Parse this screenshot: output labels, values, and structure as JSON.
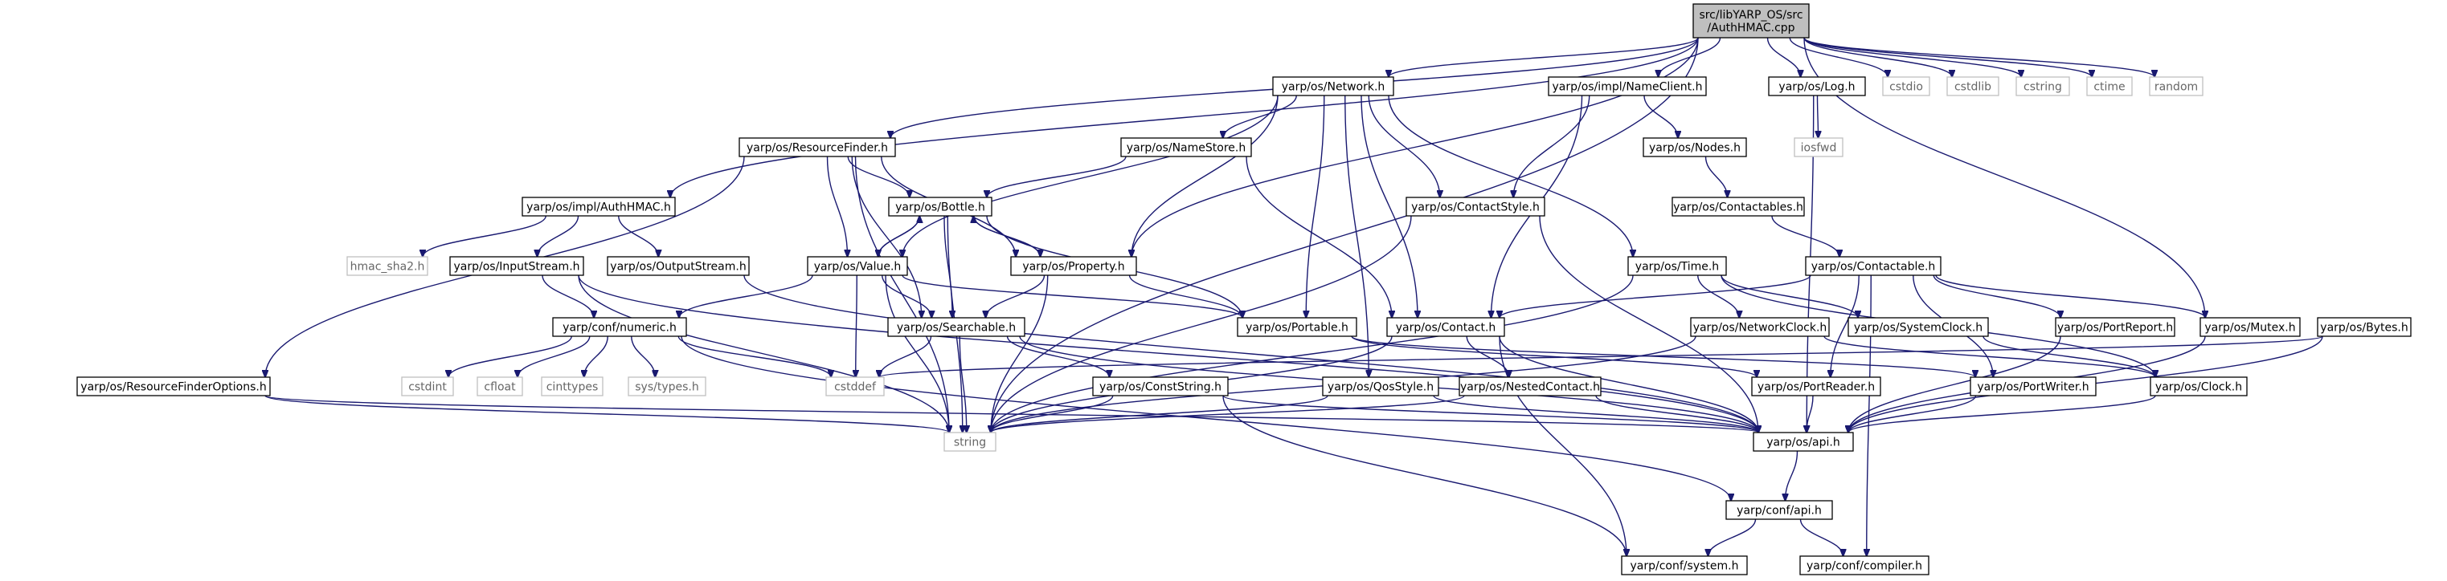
{
  "graph": {
    "root": "src/libYARP_OS/src/AuthHMAC.cpp",
    "nodes": [
      {
        "id": "root",
        "label": "src/libYARP_OS/src\n/AuthHMAC.cpp",
        "kind": "root"
      },
      {
        "id": "string",
        "label": "string",
        "kind": "system"
      },
      {
        "id": "resfinder",
        "label": "yarp/os/ResourceFinder.h",
        "kind": "project"
      },
      {
        "id": "network",
        "label": "yarp/os/Network.h",
        "kind": "project"
      },
      {
        "id": "nameclient",
        "label": "yarp/os/impl/NameClient.h",
        "kind": "project"
      },
      {
        "id": "log",
        "label": "yarp/os/Log.h",
        "kind": "project"
      },
      {
        "id": "cstdio",
        "label": "cstdio",
        "kind": "system"
      },
      {
        "id": "cstdlib",
        "label": "cstdlib",
        "kind": "system"
      },
      {
        "id": "cstring",
        "label": "cstring",
        "kind": "system"
      },
      {
        "id": "ctime",
        "label": "ctime",
        "kind": "system"
      },
      {
        "id": "random",
        "label": "random",
        "kind": "system"
      },
      {
        "id": "iosfwd",
        "label": "iosfwd",
        "kind": "system"
      },
      {
        "id": "nodes",
        "label": "yarp/os/Nodes.h",
        "kind": "project"
      },
      {
        "id": "namestore",
        "label": "yarp/os/NameStore.h",
        "kind": "project"
      },
      {
        "id": "authimpl",
        "label": "yarp/os/impl/AuthHMAC.h",
        "kind": "project"
      },
      {
        "id": "bottle",
        "label": "yarp/os/Bottle.h",
        "kind": "project"
      },
      {
        "id": "contactstyle",
        "label": "yarp/os/ContactStyle.h",
        "kind": "project"
      },
      {
        "id": "contactables",
        "label": "yarp/os/Contactables.h",
        "kind": "project"
      },
      {
        "id": "hmac",
        "label": "hmac_sha2.h",
        "kind": "system"
      },
      {
        "id": "inputstream",
        "label": "yarp/os/InputStream.h",
        "kind": "project"
      },
      {
        "id": "outputstream",
        "label": "yarp/os/OutputStream.h",
        "kind": "project"
      },
      {
        "id": "value",
        "label": "yarp/os/Value.h",
        "kind": "project"
      },
      {
        "id": "property",
        "label": "yarp/os/Property.h",
        "kind": "project"
      },
      {
        "id": "time",
        "label": "yarp/os/Time.h",
        "kind": "project"
      },
      {
        "id": "contactable",
        "label": "yarp/os/Contactable.h",
        "kind": "project"
      },
      {
        "id": "numeric",
        "label": "yarp/conf/numeric.h",
        "kind": "project"
      },
      {
        "id": "searchable",
        "label": "yarp/os/Searchable.h",
        "kind": "project"
      },
      {
        "id": "portable",
        "label": "yarp/os/Portable.h",
        "kind": "project"
      },
      {
        "id": "contact",
        "label": "yarp/os/Contact.h",
        "kind": "project"
      },
      {
        "id": "networkclock",
        "label": "yarp/os/NetworkClock.h",
        "kind": "project"
      },
      {
        "id": "systemclock",
        "label": "yarp/os/SystemClock.h",
        "kind": "project"
      },
      {
        "id": "portreport",
        "label": "yarp/os/PortReport.h",
        "kind": "project"
      },
      {
        "id": "mutex",
        "label": "yarp/os/Mutex.h",
        "kind": "project"
      },
      {
        "id": "bytes",
        "label": "yarp/os/Bytes.h",
        "kind": "project"
      },
      {
        "id": "cstdint",
        "label": "cstdint",
        "kind": "system"
      },
      {
        "id": "cfloat",
        "label": "cfloat",
        "kind": "system"
      },
      {
        "id": "cinttypes",
        "label": "cinttypes",
        "kind": "system"
      },
      {
        "id": "systypes",
        "label": "sys/types.h",
        "kind": "system"
      },
      {
        "id": "cstddef",
        "label": "cstddef",
        "kind": "system"
      },
      {
        "id": "resfinderopts",
        "label": "yarp/os/ResourceFinderOptions.h",
        "kind": "project"
      },
      {
        "id": "conststring",
        "label": "yarp/os/ConstString.h",
        "kind": "project"
      },
      {
        "id": "qosstyle",
        "label": "yarp/os/QosStyle.h",
        "kind": "project"
      },
      {
        "id": "nestedcontact",
        "label": "yarp/os/NestedContact.h",
        "kind": "project"
      },
      {
        "id": "portreader",
        "label": "yarp/os/PortReader.h",
        "kind": "project"
      },
      {
        "id": "portwriter",
        "label": "yarp/os/PortWriter.h",
        "kind": "project"
      },
      {
        "id": "clock",
        "label": "yarp/os/Clock.h",
        "kind": "project"
      },
      {
        "id": "api",
        "label": "yarp/os/api.h",
        "kind": "project"
      },
      {
        "id": "confapi",
        "label": "yarp/conf/api.h",
        "kind": "project"
      },
      {
        "id": "confsystem",
        "label": "yarp/conf/system.h",
        "kind": "project"
      },
      {
        "id": "confcompiler",
        "label": "yarp/conf/compiler.h",
        "kind": "project"
      }
    ],
    "edges": [
      [
        "root",
        "string"
      ],
      [
        "root",
        "resfinder"
      ],
      [
        "root",
        "network"
      ],
      [
        "root",
        "nameclient"
      ],
      [
        "root",
        "log"
      ],
      [
        "root",
        "cstdio"
      ],
      [
        "root",
        "cstdlib"
      ],
      [
        "root",
        "cstring"
      ],
      [
        "root",
        "ctime"
      ],
      [
        "root",
        "random"
      ],
      [
        "root",
        "authimpl"
      ],
      [
        "root",
        "property"
      ],
      [
        "root",
        "mutex"
      ],
      [
        "resfinder",
        "bottle"
      ],
      [
        "resfinder",
        "property"
      ],
      [
        "resfinder",
        "value"
      ],
      [
        "resfinder",
        "searchable"
      ],
      [
        "resfinder",
        "resfinderopts"
      ],
      [
        "resfinder",
        "string"
      ],
      [
        "network",
        "namestore"
      ],
      [
        "network",
        "contactstyle"
      ],
      [
        "network",
        "contact"
      ],
      [
        "network",
        "portable"
      ],
      [
        "network",
        "time"
      ],
      [
        "network",
        "value"
      ],
      [
        "network",
        "property"
      ],
      [
        "network",
        "qosstyle"
      ],
      [
        "nameclient",
        "nodes"
      ],
      [
        "nameclient",
        "contactstyle"
      ],
      [
        "nameclient",
        "contact"
      ],
      [
        "log",
        "iosfwd"
      ],
      [
        "log",
        "api"
      ],
      [
        "nodes",
        "contactables"
      ],
      [
        "contactables",
        "contactable"
      ],
      [
        "namestore",
        "bottle"
      ],
      [
        "namestore",
        "contact"
      ],
      [
        "authimpl",
        "hmac"
      ],
      [
        "authimpl",
        "inputstream"
      ],
      [
        "authimpl",
        "outputstream"
      ],
      [
        "bottle",
        "value"
      ],
      [
        "bottle",
        "property"
      ],
      [
        "bottle",
        "searchable"
      ],
      [
        "bottle",
        "portable"
      ],
      [
        "bottle",
        "string"
      ],
      [
        "value",
        "bottle"
      ],
      [
        "property",
        "bottle"
      ],
      [
        "contactstyle",
        "string"
      ],
      [
        "contactstyle",
        "api"
      ],
      [
        "inputstream",
        "numeric"
      ],
      [
        "inputstream",
        "string"
      ],
      [
        "inputstream",
        "api"
      ],
      [
        "outputstream",
        "api"
      ],
      [
        "value",
        "numeric"
      ],
      [
        "value",
        "searchable"
      ],
      [
        "value",
        "portable"
      ],
      [
        "value",
        "string"
      ],
      [
        "value",
        "cstddef"
      ],
      [
        "property",
        "searchable"
      ],
      [
        "property",
        "portable"
      ],
      [
        "property",
        "string"
      ],
      [
        "time",
        "networkclock"
      ],
      [
        "time",
        "systemclock"
      ],
      [
        "time",
        "string"
      ],
      [
        "time",
        "clock"
      ],
      [
        "contactable",
        "contact"
      ],
      [
        "contactable",
        "portreport"
      ],
      [
        "contactable",
        "mutex"
      ],
      [
        "contactable",
        "portreader"
      ],
      [
        "contactable",
        "portwriter"
      ],
      [
        "contactable",
        "confcompiler"
      ],
      [
        "numeric",
        "cstdint"
      ],
      [
        "numeric",
        "cfloat"
      ],
      [
        "numeric",
        "cinttypes"
      ],
      [
        "numeric",
        "systypes"
      ],
      [
        "numeric",
        "cstddef"
      ],
      [
        "numeric",
        "confapi"
      ],
      [
        "searchable",
        "conststring"
      ],
      [
        "searchable",
        "cstddef"
      ],
      [
        "searchable",
        "string"
      ],
      [
        "searchable",
        "api"
      ],
      [
        "portable",
        "portreader"
      ],
      [
        "portable",
        "portwriter"
      ],
      [
        "contact",
        "nestedcontact"
      ],
      [
        "contact",
        "string"
      ],
      [
        "contact",
        "api"
      ],
      [
        "contact",
        "confsystem"
      ],
      [
        "networkclock",
        "clock"
      ],
      [
        "networkclock",
        "string"
      ],
      [
        "systemclock",
        "clock"
      ],
      [
        "portreport",
        "api"
      ],
      [
        "mutex",
        "api"
      ],
      [
        "bytes",
        "cstddef"
      ],
      [
        "bytes",
        "api"
      ],
      [
        "resfinderopts",
        "string"
      ],
      [
        "resfinderopts",
        "api"
      ],
      [
        "conststring",
        "string"
      ],
      [
        "conststring",
        "api"
      ],
      [
        "conststring",
        "confsystem"
      ],
      [
        "qosstyle",
        "string"
      ],
      [
        "qosstyle",
        "api"
      ],
      [
        "nestedcontact",
        "string"
      ],
      [
        "nestedcontact",
        "api"
      ],
      [
        "portreader",
        "api"
      ],
      [
        "portwriter",
        "api"
      ],
      [
        "clock",
        "api"
      ],
      [
        "api",
        "confapi"
      ],
      [
        "confapi",
        "confsystem"
      ],
      [
        "confapi",
        "confcompiler"
      ]
    ]
  }
}
